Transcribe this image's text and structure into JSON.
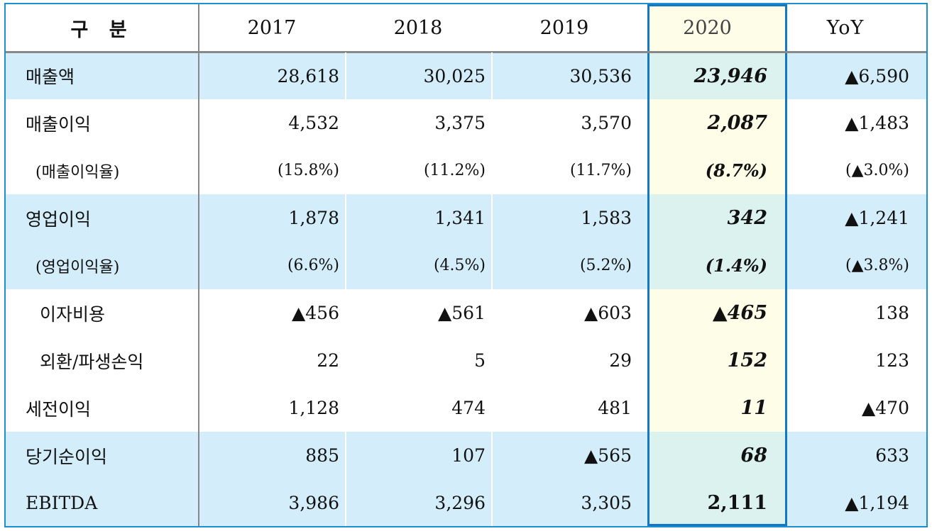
{
  "header": {
    "label": "구 분",
    "y2017": "2017",
    "y2018": "2018",
    "y2019": "2019",
    "y2020": "2020",
    "yoy": "YoY"
  },
  "rows": [
    {
      "label": "매출액",
      "v2017": "28,618",
      "v2018": "30,025",
      "v2019": "30,536",
      "v2020": "23,946",
      "yoy": "▲6,590"
    },
    {
      "label": "매출이익",
      "v2017": "4,532",
      "v2018": "3,375",
      "v2019": "3,570",
      "v2020": "2,087",
      "yoy": "▲1,483"
    },
    {
      "label": "(매출이익율)",
      "v2017": "(15.8%)",
      "v2018": "(11.2%)",
      "v2019": "(11.7%)",
      "v2020": "(8.7%)",
      "yoy": "(▲3.0%)"
    },
    {
      "label": "영업이익",
      "v2017": "1,878",
      "v2018": "1,341",
      "v2019": "1,583",
      "v2020": "342",
      "yoy": "▲1,241"
    },
    {
      "label": "(영업이익율)",
      "v2017": "(6.6%)",
      "v2018": "(4.5%)",
      "v2019": "(5.2%)",
      "v2020": "(1.4%)",
      "yoy": "(▲3.8%)"
    },
    {
      "label": "이자비용",
      "v2017": "▲456",
      "v2018": "▲561",
      "v2019": "▲603",
      "v2020": "▲465",
      "yoy": "138"
    },
    {
      "label": "외환/파생손익",
      "v2017": "22",
      "v2018": "5",
      "v2019": "29",
      "v2020": "152",
      "yoy": "123"
    },
    {
      "label": "세전이익",
      "v2017": "1,128",
      "v2018": "474",
      "v2019": "481",
      "v2020": "11",
      "yoy": "▲470"
    },
    {
      "label": "당기순이익",
      "v2017": "885",
      "v2018": "107",
      "v2019": "▲565",
      "v2020": "68",
      "yoy": "633"
    },
    {
      "label": "EBITDA",
      "v2017": "3,986",
      "v2018": "3,296",
      "v2019": "3,305",
      "v2020": "2,111",
      "yoy": "▲1,194"
    }
  ],
  "colors": {
    "border": "#1d8fcf",
    "row_highlight": "#d3eefa",
    "column_highlight_border": "#1477c4",
    "column_highlight_fill": "#fdfde8"
  }
}
